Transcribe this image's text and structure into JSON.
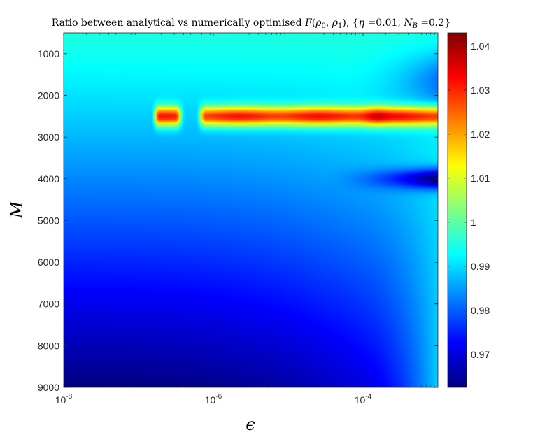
{
  "chart_data": {
    "type": "heatmap",
    "title": "Ratio between analytical vs numerically optimised F(ρ0, ρ1), {η =0.01, NB =0.2}",
    "title_parts": {
      "prefix": "Ratio between analytical vs numerically optimised ",
      "F": "F",
      "rho0": "ρ",
      "rho0_sub": "0",
      "rho1": "ρ",
      "rho1_sub": "1",
      "eta": "η",
      "eta_val": " =0.01, ",
      "NB": "N",
      "NB_sub": "B",
      "NB_val": " =0.2}"
    },
    "xlabel": "ϵ",
    "ylabel": "M",
    "x_scale": "log",
    "xlim": [
      1e-08,
      0.001
    ],
    "ylim": [
      500,
      9000
    ],
    "y_reversed": true,
    "x_ticks": [
      {
        "value": 1e-08,
        "base": "10",
        "exp": "-8"
      },
      {
        "value": 1e-06,
        "base": "10",
        "exp": "-6"
      },
      {
        "value": 0.0001,
        "base": "10",
        "exp": "-4"
      }
    ],
    "y_ticks": [
      "1000",
      "2000",
      "3000",
      "4000",
      "5000",
      "6000",
      "7000",
      "8000",
      "9000"
    ],
    "colorbar": {
      "colormap": "jet",
      "range": [
        0.9625,
        1.043
      ],
      "ticks": [
        "0.97",
        "0.98",
        "0.99",
        "1",
        "1.01",
        "1.02",
        "1.03",
        "1.04"
      ]
    },
    "features": [
      {
        "name": "high ridge",
        "M": 2500,
        "eps_min": 1.5e-07,
        "eps_max": 0.001,
        "peak_value": 1.043,
        "peak_eps": 0.00015,
        "gap_eps": [
          3.5e-07,
          7e-07
        ]
      },
      {
        "name": "low trough",
        "M": 4000,
        "eps_min": 0.0001,
        "eps_max": 0.001,
        "value": 0.9625
      },
      {
        "name": "top band",
        "M": 500,
        "value": 0.995
      },
      {
        "name": "bottom-left minimum",
        "M": 9000,
        "eps": 1e-08,
        "value": 0.9625
      }
    ]
  }
}
